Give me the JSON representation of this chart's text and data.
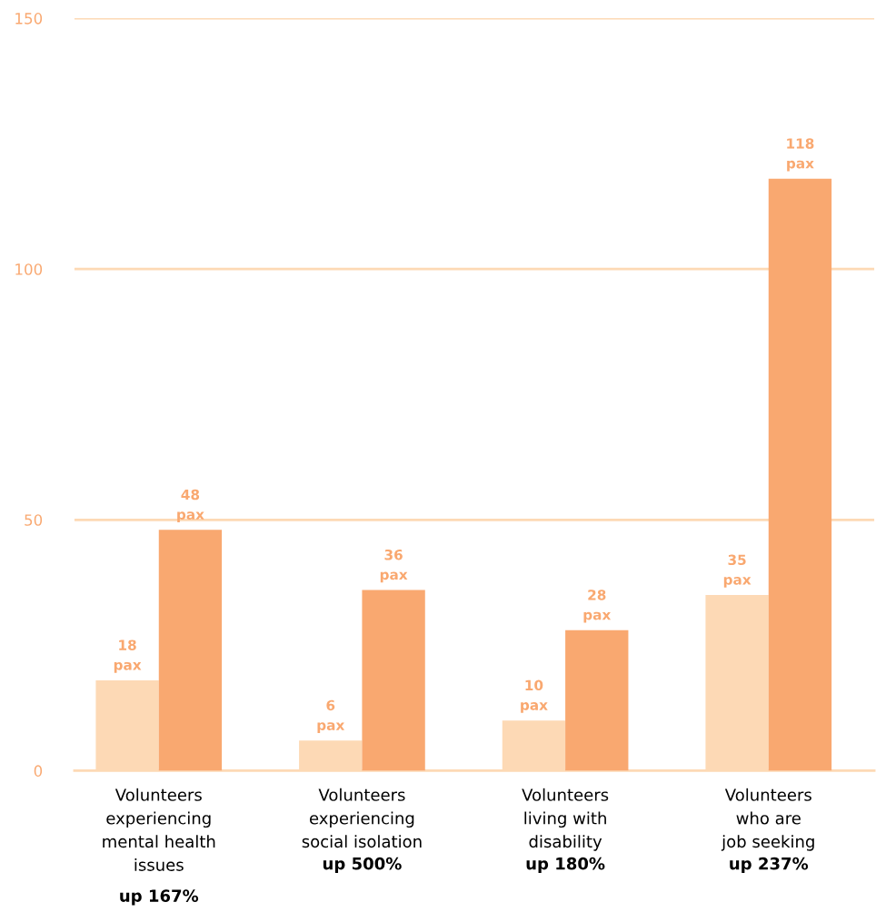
{
  "chart_data": {
    "type": "bar",
    "categories": [
      "Volunteers\nexperiencing\nmental health\nissues",
      "Volunteers\nexperiencing\nsocial isolation",
      "Volunteers\nliving with\ndisability",
      "Volunteers\nwho are\njob seeking"
    ],
    "series": [
      {
        "color": "#fdd9b5",
        "values": [
          18,
          6,
          10,
          35
        ],
        "value_labels": [
          "18\npax",
          "6\npax",
          "10\npax",
          "35\npax"
        ]
      },
      {
        "color": "#f9a870",
        "values": [
          48,
          36,
          28,
          118
        ],
        "value_labels": [
          "48\npax",
          "36\npax",
          "28\npax",
          "118\npax"
        ]
      }
    ],
    "annotations": [
      "up 167%",
      "up 500%",
      "up 180%",
      "up 237%"
    ],
    "ylim": [
      0,
      150
    ],
    "yticks": [
      0,
      50,
      100,
      150
    ],
    "grid": "y",
    "legend": false
  }
}
